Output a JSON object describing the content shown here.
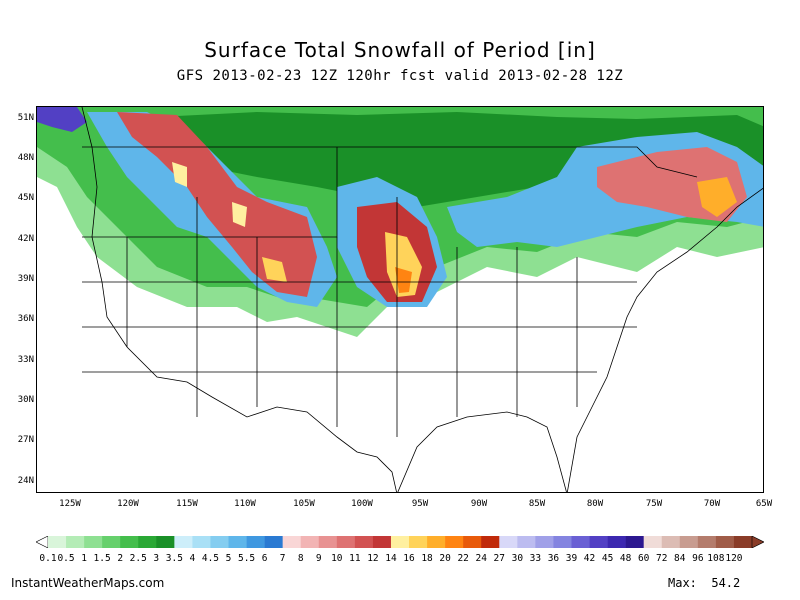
{
  "title": "Surface Total Snowfall of Period [in]",
  "subtitle": "GFS 2013-02-23 12Z 120hr fcst valid 2013-02-28 12Z",
  "footer": {
    "source": "InstantWeatherMaps.com",
    "max_label": "Max:",
    "max_value": "54.2"
  },
  "axes": {
    "lat_labels": [
      "51N",
      "48N",
      "45N",
      "42N",
      "39N",
      "36N",
      "33N",
      "30N",
      "27N",
      "24N"
    ],
    "lon_labels": [
      "125W",
      "120W",
      "115W",
      "110W",
      "105W",
      "100W",
      "95W",
      "90W",
      "85W",
      "80W",
      "75W",
      "70W",
      "65W"
    ]
  },
  "colorbar": {
    "levels": [
      "0.1",
      "0.5",
      "1",
      "1.5",
      "2",
      "2.5",
      "3",
      "3.5",
      "4",
      "4.5",
      "5",
      "5.5",
      "6",
      "7",
      "8",
      "9",
      "10",
      "11",
      "12",
      "14",
      "16",
      "18",
      "20",
      "22",
      "24",
      "27",
      "30",
      "33",
      "36",
      "39",
      "42",
      "45",
      "48",
      "60",
      "72",
      "84",
      "96",
      "108",
      "120"
    ],
    "colors": [
      "#d9f5da",
      "#b4ecb6",
      "#8ee092",
      "#66d06c",
      "#44be4c",
      "#2aa835",
      "#1a9028",
      "#cdeefa",
      "#a9e0f6",
      "#84cdf0",
      "#5fb6ea",
      "#3f98e0",
      "#2a7ad2",
      "#f9d6d6",
      "#f2b4b4",
      "#e89292",
      "#de7272",
      "#d25252",
      "#c23636",
      "#fff0a0",
      "#ffd35a",
      "#ffae2a",
      "#ff8412",
      "#e85a0a",
      "#c02a0a",
      "#d8d8f8",
      "#bcbcf0",
      "#a0a0e8",
      "#8484e0",
      "#6a60d4",
      "#5240c4",
      "#3c28b0",
      "#2c1890",
      "#f0dcd8",
      "#dcbcb4",
      "#c89c90",
      "#b47c6c",
      "#a05c48",
      "#8a3c28"
    ]
  }
}
